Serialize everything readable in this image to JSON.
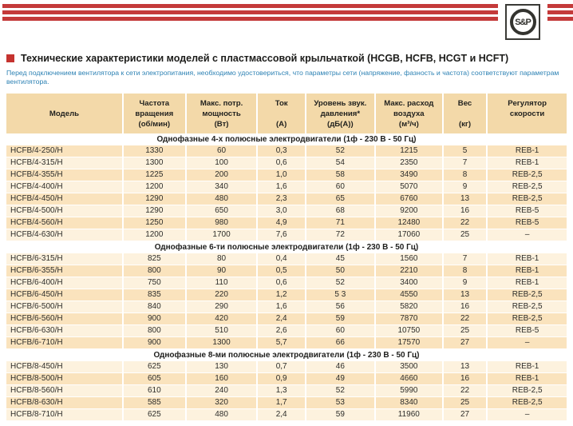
{
  "brand": {
    "logo_text": "S&P"
  },
  "header": {
    "title": "Технические характеристики моделей с пластмассовой крыльчаткой (HCGB, HCFB, HCGT и HCFT)",
    "note": "Перед подключением вентилятора к сети электропитания, необходимо удостовериться, что параметры сети (напряжение, фазность и частота) соответствуют параметрам вентилятора."
  },
  "table": {
    "columns": [
      {
        "name": "model",
        "lines": [
          "",
          "Модель",
          ""
        ]
      },
      {
        "name": "speed",
        "lines": [
          "Частота",
          "вращения",
          "(об/мин)"
        ]
      },
      {
        "name": "power",
        "lines": [
          "Макс. потр.",
          "мощность",
          "(Вт)"
        ]
      },
      {
        "name": "current",
        "lines": [
          "Ток",
          "",
          "(А)"
        ]
      },
      {
        "name": "sound",
        "lines": [
          "Уровень звук.",
          "давления*",
          "(дБ(А))"
        ]
      },
      {
        "name": "airflow",
        "lines": [
          "Макс. расход",
          "воздуха",
          "(м³/ч)"
        ]
      },
      {
        "name": "weight",
        "lines": [
          "Вес",
          "",
          "(кг)"
        ]
      },
      {
        "name": "regulator",
        "lines": [
          "Регулятор",
          "скорости",
          ""
        ]
      }
    ],
    "sections": [
      {
        "title": "Однофазные 4-х полюсные электродвигатели (1ф - 230 В - 50 Гц)",
        "rows": [
          [
            "HCFB/4-250/H",
            "1330",
            "60",
            "0,3",
            "52",
            "1215",
            "5",
            "REB-1"
          ],
          [
            "HCFB/4-315/H",
            "1300",
            "100",
            "0,6",
            "54",
            "2350",
            "7",
            "REB-1"
          ],
          [
            "HCFB/4-355/H",
            "1225",
            "200",
            "1,0",
            "58",
            "3490",
            "8",
            "REB-2,5"
          ],
          [
            "HCFB/4-400/H",
            "1200",
            "340",
            "1,6",
            "60",
            "5070",
            "9",
            "REB-2,5"
          ],
          [
            "HCFB/4-450/H",
            "1290",
            "480",
            "2,3",
            "65",
            "6760",
            "13",
            "REB-2,5"
          ],
          [
            "HCFB/4-500/H",
            "1290",
            "650",
            "3,0",
            "68",
            "9200",
            "16",
            "REB-5"
          ],
          [
            "HCFB/4-560/H",
            "1250",
            "980",
            "4,9",
            "71",
            "12480",
            "22",
            "REB-5"
          ],
          [
            "HCFB/4-630/H",
            "1200",
            "1700",
            "7,6",
            "72",
            "17060",
            "25",
            "–"
          ]
        ]
      },
      {
        "title": "Однофазные 6-ти полюсные электродвигатели (1ф - 230 В - 50 Гц)",
        "rows": [
          [
            "HCFB/6-315/H",
            "825",
            "80",
            "0,4",
            "45",
            "1560",
            "7",
            "REB-1"
          ],
          [
            "HCFB/6-355/H",
            "800",
            "90",
            "0,5",
            "50",
            "2210",
            "8",
            "REB-1"
          ],
          [
            "HCFB/6-400/H",
            "750",
            "110",
            "0,6",
            "52",
            "3400",
            "9",
            "REB-1"
          ],
          [
            "HCFB/6-450/H",
            "835",
            "220",
            "1,2",
            "5 3",
            "4550",
            "13",
            "REB-2,5"
          ],
          [
            "HCFB/6-500/H",
            "840",
            "290",
            "1,6",
            "56",
            "5820",
            "16",
            "REB-2,5"
          ],
          [
            "HCFB/6-560/H",
            "900",
            "420",
            "2,4",
            "59",
            "7870",
            "22",
            "REB-2,5"
          ],
          [
            "HCFB/6-630/H",
            "800",
            "510",
            "2,6",
            "60",
            "10750",
            "25",
            "REB-5"
          ],
          [
            "HCFB/6-710/H",
            "900",
            "1300",
            "5,7",
            "66",
            "17570",
            "27",
            "–"
          ]
        ]
      },
      {
        "title": "Однофазные 8-ми полюсные электродвигатели (1ф - 230 В - 50 Гц)",
        "rows": [
          [
            "HCFB/8-450/H",
            "625",
            "130",
            "0,7",
            "46",
            "3500",
            "13",
            "REB-1"
          ],
          [
            "HCFB/8-500/H",
            "605",
            "160",
            "0,9",
            "49",
            "4660",
            "16",
            "REB-1"
          ],
          [
            "HCFB/8-560/H",
            "610",
            "240",
            "1,3",
            "52",
            "5990",
            "22",
            "REB-2,5"
          ],
          [
            "HCFB/8-630/H",
            "585",
            "320",
            "1,7",
            "53",
            "8340",
            "25",
            "REB-2,5"
          ],
          [
            "HCFB/8-710/H",
            "625",
            "480",
            "2,4",
            "59",
            "11960",
            "27",
            "–"
          ]
        ]
      }
    ]
  },
  "colors": {
    "accent_red": "#c43a3a",
    "bullet_red": "#c5332f",
    "header_bg": "#f3d9a9",
    "row_dark": "#fae3bd",
    "row_light": "#fdf2de",
    "note_blue": "#2d82b4"
  }
}
